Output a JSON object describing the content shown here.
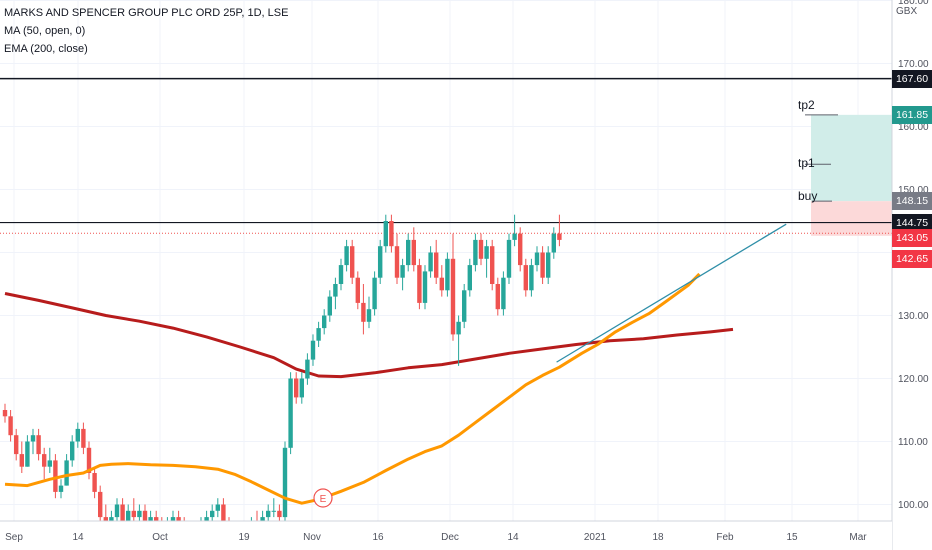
{
  "header": {
    "symbol_line": "MARKS AND SPENCER GROUP PLC ORD 25P, 1D, LSE",
    "indicator_ma": "MA (50, open, 0)",
    "indicator_ema": "EMA (200, close)",
    "currency": "GBX"
  },
  "price_axis": {
    "ticks": [
      "180.00",
      "170.00",
      "160.00",
      "150.00",
      "130.00",
      "120.00",
      "110.00",
      "100.00"
    ],
    "tick_values": [
      180,
      170,
      160,
      150,
      130,
      120,
      110,
      100
    ]
  },
  "time_axis": {
    "labels": [
      "Sep",
      "14",
      "Oct",
      "19",
      "Nov",
      "16",
      "Dec",
      "14",
      "2021",
      "18",
      "Feb",
      "15",
      "Mar"
    ]
  },
  "levels": [
    {
      "label": "167.60",
      "value": 167.6,
      "bg": "#131722"
    },
    {
      "label": "161.85",
      "value": 161.85,
      "bg": "#22998e"
    },
    {
      "label": "148.15",
      "value": 148.15,
      "bg": "#787b86"
    },
    {
      "label": "144.75",
      "value": 144.75,
      "bg": "#131722"
    },
    {
      "label": "143.05",
      "value": 143.05,
      "bg": "#f23645"
    },
    {
      "label": "142.65",
      "value": 142.65,
      "bg": "#f23645"
    }
  ],
  "position": {
    "tp2_label": "tp2",
    "tp1_label": "tp1",
    "buy_label": "buy",
    "tp2": 161.85,
    "tp1": 154.0,
    "buy": 148.15,
    "stop": 142.65
  },
  "earnings_marker": "E",
  "colors": {
    "up": "#26a69a",
    "down": "#ef5350",
    "ma": "#ff9800",
    "ema": "#b71c1c",
    "trendline": "#2f8fa8",
    "profit_zone": "#d1ede9",
    "loss_zone": "#fcd9d9"
  },
  "chart_data": {
    "type": "candlestick",
    "ylim": [
      98,
      184
    ],
    "candles": [
      [
        115,
        116,
        113,
        114
      ],
      [
        114,
        115,
        110,
        111
      ],
      [
        111,
        112,
        107,
        108
      ],
      [
        108,
        110,
        105,
        106
      ],
      [
        106,
        111,
        106,
        110
      ],
      [
        110,
        112,
        108,
        111
      ],
      [
        111,
        112,
        107,
        108
      ],
      [
        108,
        109,
        104,
        106
      ],
      [
        106,
        109,
        105,
        107
      ],
      [
        107,
        108,
        101,
        102
      ],
      [
        102,
        104,
        101,
        103
      ],
      [
        103,
        108,
        103,
        107
      ],
      [
        107,
        111,
        106,
        110
      ],
      [
        110,
        113,
        109,
        112
      ],
      [
        112,
        113,
        108,
        109
      ],
      [
        109,
        110,
        104,
        105
      ],
      [
        105,
        106,
        101,
        102
      ],
      [
        102,
        103,
        97,
        98
      ],
      [
        98,
        100,
        96,
        97
      ],
      [
        97,
        99,
        96,
        98
      ],
      [
        98,
        101,
        97,
        100
      ],
      [
        100,
        101,
        96,
        97
      ],
      [
        97,
        100,
        96,
        99
      ],
      [
        99,
        101,
        97,
        98
      ],
      [
        98,
        100,
        97,
        99
      ],
      [
        99,
        100,
        96,
        97
      ],
      [
        97,
        99,
        96,
        98
      ],
      [
        98,
        99,
        96,
        97
      ],
      [
        97,
        98,
        95,
        96
      ],
      [
        96,
        98,
        95,
        97
      ],
      [
        97,
        99,
        96,
        98
      ],
      [
        98,
        99,
        96,
        97
      ],
      [
        97,
        98,
        95,
        96
      ],
      [
        96,
        97,
        94,
        95
      ],
      [
        95,
        97,
        94,
        96
      ],
      [
        96,
        98,
        95,
        97
      ],
      [
        97,
        99,
        96,
        98
      ],
      [
        98,
        100,
        97,
        99
      ],
      [
        99,
        101,
        98,
        100
      ],
      [
        100,
        101,
        96,
        97
      ],
      [
        97,
        98,
        95,
        96
      ],
      [
        96,
        97,
        93,
        94
      ],
      [
        94,
        96,
        93,
        95
      ],
      [
        95,
        97,
        94,
        96
      ],
      [
        96,
        98,
        95,
        97
      ],
      [
        97,
        99,
        95,
        96
      ],
      [
        96,
        99,
        96,
        98
      ],
      [
        98,
        100,
        97,
        99
      ],
      [
        99,
        101,
        98,
        99
      ],
      [
        99,
        100,
        97,
        98
      ],
      [
        98,
        110,
        97,
        109
      ],
      [
        109,
        121,
        108,
        120
      ],
      [
        120,
        121,
        116,
        117
      ],
      [
        117,
        121,
        116,
        120
      ],
      [
        120,
        124,
        119,
        123
      ],
      [
        123,
        127,
        122,
        126
      ],
      [
        126,
        129,
        125,
        128
      ],
      [
        128,
        131,
        127,
        130
      ],
      [
        130,
        134,
        129,
        133
      ],
      [
        133,
        136,
        131,
        135
      ],
      [
        135,
        139,
        134,
        138
      ],
      [
        138,
        142,
        137,
        141
      ],
      [
        141,
        142,
        135,
        136
      ],
      [
        136,
        137,
        131,
        132
      ],
      [
        132,
        135,
        127,
        129
      ],
      [
        129,
        133,
        128,
        131
      ],
      [
        131,
        137,
        130,
        136
      ],
      [
        136,
        142,
        135,
        141
      ],
      [
        141,
        146,
        140,
        145
      ],
      [
        145,
        146,
        140,
        141
      ],
      [
        141,
        143,
        135,
        136
      ],
      [
        136,
        139,
        134,
        138
      ],
      [
        138,
        143,
        137,
        142
      ],
      [
        142,
        144,
        137,
        138
      ],
      [
        138,
        139,
        131,
        132
      ],
      [
        132,
        138,
        131,
        137
      ],
      [
        137,
        141,
        136,
        140
      ],
      [
        140,
        142,
        135,
        136
      ],
      [
        136,
        138,
        133,
        134
      ],
      [
        134,
        140,
        133,
        139
      ],
      [
        139,
        143,
        126,
        127
      ],
      [
        127,
        130,
        122,
        129
      ],
      [
        129,
        135,
        128,
        134
      ],
      [
        134,
        139,
        133,
        138
      ],
      [
        138,
        143,
        137,
        142
      ],
      [
        142,
        143,
        138,
        139
      ],
      [
        139,
        142,
        136,
        141
      ],
      [
        141,
        142,
        134,
        135
      ],
      [
        135,
        136,
        130,
        131
      ],
      [
        131,
        137,
        130,
        136
      ],
      [
        136,
        143,
        135,
        142
      ],
      [
        142,
        146,
        141,
        143
      ],
      [
        143,
        144,
        137,
        138
      ],
      [
        138,
        139,
        133,
        134
      ],
      [
        134,
        139,
        133,
        138
      ],
      [
        138,
        141,
        137,
        140
      ],
      [
        140,
        141,
        135,
        136
      ],
      [
        136,
        141,
        135,
        140
      ],
      [
        140,
        144,
        139,
        143
      ],
      [
        143,
        146,
        141,
        142
      ]
    ],
    "ma_50": [
      [
        0,
        103.2
      ],
      [
        4,
        103.0
      ],
      [
        8,
        104.0
      ],
      [
        11,
        104.6
      ],
      [
        14,
        105.0
      ],
      [
        17,
        106.2
      ],
      [
        19,
        106.4
      ],
      [
        22,
        106.5
      ],
      [
        26,
        106.3
      ],
      [
        30,
        106.2
      ],
      [
        34,
        106.0
      ],
      [
        38,
        105.6
      ],
      [
        41,
        104.8
      ],
      [
        44,
        103.6
      ],
      [
        47,
        102.3
      ],
      [
        50,
        101.0
      ],
      [
        53,
        100.2
      ],
      [
        56,
        100.8
      ],
      [
        60,
        102.1
      ],
      [
        64,
        103.5
      ],
      [
        68,
        105.4
      ],
      [
        72,
        107.2
      ],
      [
        75,
        108.4
      ],
      [
        78,
        109.3
      ],
      [
        81,
        111.0
      ],
      [
        84,
        113.0
      ],
      [
        87,
        115.0
      ],
      [
        90,
        117.0
      ],
      [
        93,
        119.0
      ],
      [
        96,
        120.5
      ],
      [
        99,
        121.8
      ],
      [
        103,
        124.0
      ],
      [
        106,
        125.5
      ],
      [
        109,
        127.4
      ],
      [
        112,
        128.9
      ],
      [
        115,
        130.3
      ],
      [
        118,
        132.2
      ],
      [
        122,
        134.8
      ],
      [
        124,
        136.6
      ]
    ],
    "ema_200": [
      [
        0,
        133.5
      ],
      [
        6,
        132.4
      ],
      [
        12,
        131.2
      ],
      [
        18,
        130.0
      ],
      [
        24,
        129.1
      ],
      [
        30,
        128.0
      ],
      [
        36,
        126.6
      ],
      [
        42,
        125.0
      ],
      [
        48,
        123.3
      ],
      [
        52,
        121.5
      ],
      [
        56,
        120.4
      ],
      [
        60,
        120.3
      ],
      [
        66,
        120.9
      ],
      [
        72,
        121.7
      ],
      [
        78,
        122.2
      ],
      [
        84,
        123.1
      ],
      [
        90,
        124.0
      ],
      [
        96,
        124.7
      ],
      [
        102,
        125.4
      ],
      [
        108,
        126.0
      ],
      [
        114,
        126.3
      ],
      [
        120,
        126.9
      ],
      [
        126,
        127.4
      ],
      [
        130,
        127.8
      ]
    ],
    "trendline": [
      [
        98.5,
        122.6
      ],
      [
        139.5,
        144.5
      ]
    ],
    "earnings_index": 58
  }
}
